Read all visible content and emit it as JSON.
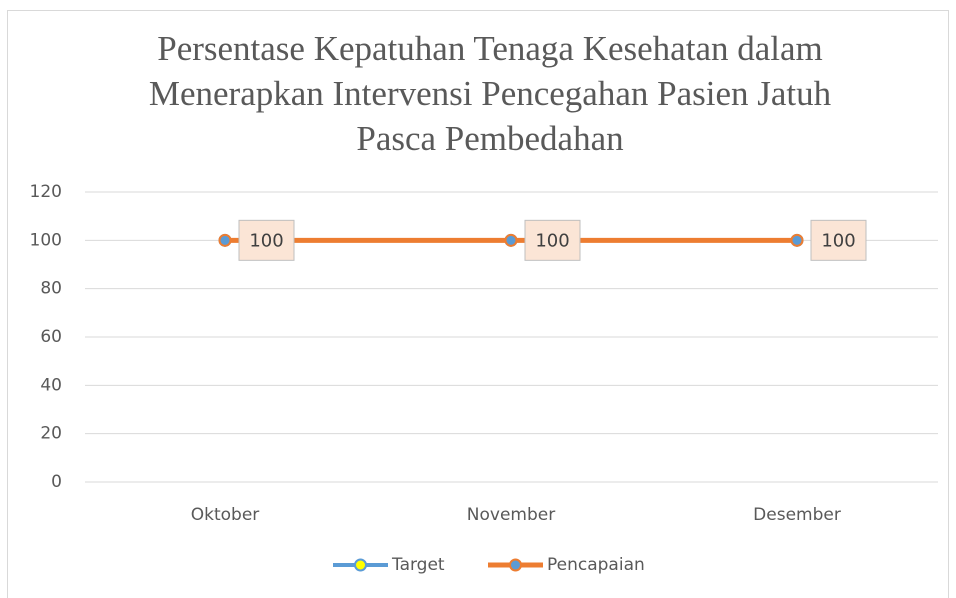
{
  "chart_data": {
    "type": "line",
    "title": [
      "Persentase Kepatuhan Tenaga Kesehatan dalam",
      "Menerapkan Intervensi Pencegahan Pasien Jatuh",
      "Pasca Pembedahan"
    ],
    "categories": [
      "Oktober",
      "November",
      "Desember"
    ],
    "series": [
      {
        "name": "Target",
        "color": "#5b9bd5",
        "marker_color": "#ffff00",
        "values": [
          100,
          100,
          100
        ]
      },
      {
        "name": "Pencapaian",
        "color": "#ed7d31",
        "marker_color": "#5b9bd5",
        "values": [
          100,
          100,
          100
        ],
        "data_labels": true
      }
    ],
    "ylim": [
      0,
      120
    ],
    "yticks": [
      0,
      20,
      40,
      60,
      80,
      100,
      120
    ],
    "grid": true,
    "legend": "bottom"
  }
}
